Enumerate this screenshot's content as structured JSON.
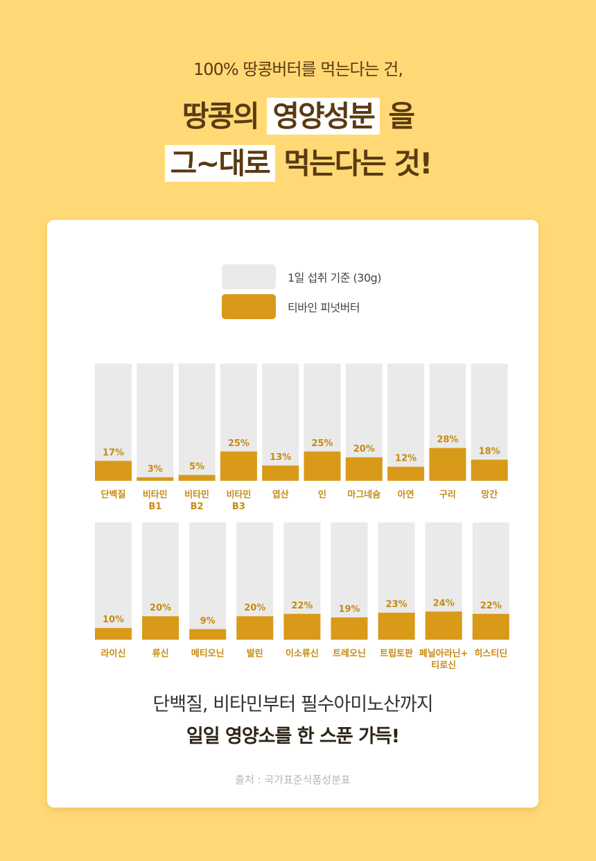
{
  "header": {
    "intro": "100% 땅콩버터를 먹는다는 건,",
    "line1_pre": "땅콩의",
    "line1_mark": "영양성분",
    "line1_post": "을",
    "line2_mark": "그~대로",
    "line2_post": "먹는다는 것!"
  },
  "colors": {
    "background": "#FFD975",
    "daily_bar": "#EAEAEA",
    "product_bar": "#D89A18",
    "label": "#C68A12"
  },
  "chart_data": {
    "type": "bar",
    "legend": [
      {
        "name": "1일 섭취 기준 (30g)",
        "color": "#EAEAEA"
      },
      {
        "name": "티바인 피넛버터",
        "color": "#D89A18"
      }
    ],
    "ylim": [
      0,
      100
    ],
    "rows": [
      {
        "categories": [
          [
            "단백질"
          ],
          [
            "비타민",
            "B1"
          ],
          [
            "비타민",
            "B2"
          ],
          [
            "비타민",
            "B3"
          ],
          [
            "엽산"
          ],
          [
            "인"
          ],
          [
            "마그네슘"
          ],
          [
            "아연"
          ],
          [
            "구리"
          ],
          [
            "망간"
          ]
        ],
        "values": [
          17,
          3,
          5,
          25,
          13,
          25,
          20,
          12,
          28,
          18
        ]
      },
      {
        "categories": [
          [
            "라이신"
          ],
          [
            "류신"
          ],
          [
            "메티오닌"
          ],
          [
            "발린"
          ],
          [
            "이소류신"
          ],
          [
            "트레오닌"
          ],
          [
            "트립토판"
          ],
          [
            "페닐아라닌+",
            "티로신"
          ],
          [
            "히스티딘"
          ]
        ],
        "values": [
          10,
          20,
          9,
          20,
          22,
          19,
          23,
          24,
          22
        ]
      }
    ]
  },
  "footer": {
    "caption1": "단백질, 비타민부터 필수아미노산까지",
    "caption2": "일일 영양소를 한 스푼 가득!",
    "source": "출처 : 국가표준식품성분표"
  }
}
